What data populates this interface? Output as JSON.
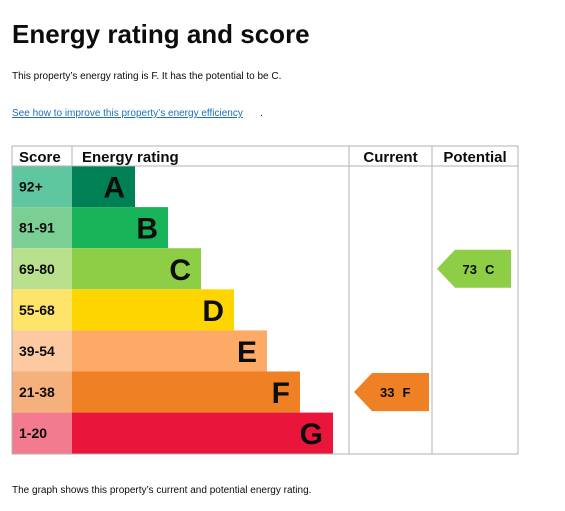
{
  "page": {
    "title": "Energy rating and score",
    "intro": "This property’s energy rating is F. It has the potential to be C.",
    "improve_link": "See how to improve this property’s energy efficiency",
    "improve_period": ".",
    "footer": "The graph shows this property’s current and potential energy rating."
  },
  "table": {
    "headers": {
      "score": "Score",
      "rating": "Energy rating",
      "current": "Current",
      "potential": "Potential"
    }
  },
  "chart_data": {
    "type": "bar",
    "bands": [
      {
        "letter": "A",
        "range": "92+",
        "color": "#008054",
        "score_bg": "#5fc7a0"
      },
      {
        "letter": "B",
        "range": "81-91",
        "color": "#19b459",
        "score_bg": "#7ccf94"
      },
      {
        "letter": "C",
        "range": "69-80",
        "color": "#8dce46",
        "score_bg": "#b9e08d"
      },
      {
        "letter": "D",
        "range": "55-68",
        "color": "#ffd500",
        "score_bg": "#ffe46c"
      },
      {
        "letter": "E",
        "range": "39-54",
        "color": "#fcaa65",
        "score_bg": "#fcc9a0"
      },
      {
        "letter": "F",
        "range": "21-38",
        "color": "#ef8023",
        "score_bg": "#f6b07c"
      },
      {
        "letter": "G",
        "range": "1-20",
        "color": "#e9153b",
        "score_bg": "#f27b8f"
      }
    ],
    "current": {
      "value": 33,
      "letter": "F",
      "color": "#ef8023"
    },
    "potential": {
      "value": 73,
      "letter": "C",
      "color": "#8dce46"
    }
  }
}
